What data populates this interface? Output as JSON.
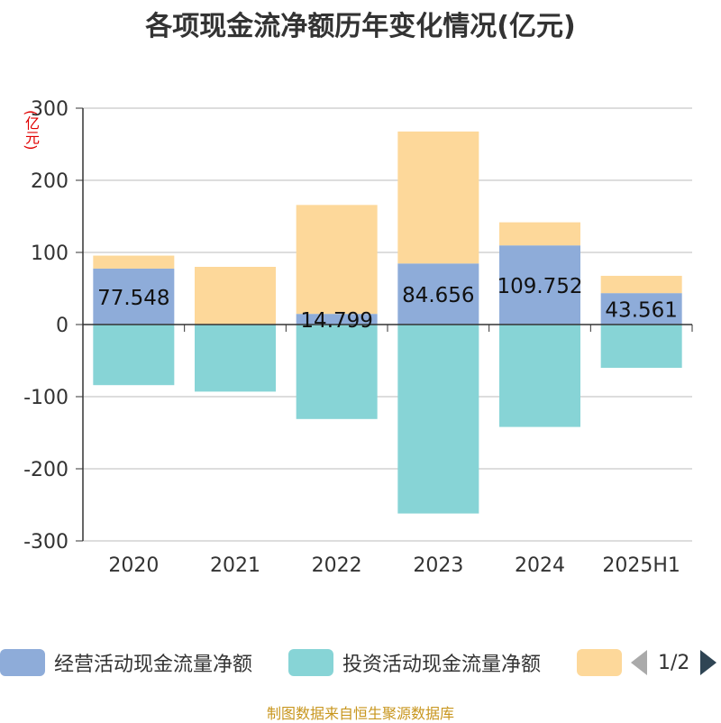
{
  "title": "各项现金流净额历年变化情况(亿元)",
  "unit_label": "(亿元)",
  "source_text": "制图数据来自恒生聚源数据库",
  "legend": {
    "items": [
      {
        "label": "经营活动现金流量净额",
        "color": "#8eacd9"
      },
      {
        "label": "投资活动现金流量净额",
        "color": "#87d4d6"
      },
      {
        "label": "",
        "color": "#fdd89a"
      }
    ],
    "page_text": "1/2"
  },
  "chart_data": {
    "type": "bar",
    "stacked": true,
    "categories": [
      "2020",
      "2021",
      "2022",
      "2023",
      "2024",
      "2025H1"
    ],
    "ylim": [
      -300,
      300
    ],
    "yticks": [
      300,
      200,
      100,
      0,
      -100,
      -200,
      -300
    ],
    "grid": true,
    "legend_position": "bottom",
    "series": [
      {
        "name": "经营活动现金流量净额",
        "color": "#8eacd9",
        "values": [
          77.548,
          0.0,
          14.799,
          84.656,
          109.752,
          43.561
        ],
        "labels": [
          "77.548",
          "",
          "14.799",
          "84.656",
          "109.752",
          "43.561"
        ]
      },
      {
        "name": "投资活动现金流量净额",
        "color": "#87d4d6",
        "values": [
          -84,
          -93,
          -131,
          -262,
          -142,
          -60
        ]
      },
      {
        "color": "#fdd89a",
        "values": [
          18,
          80,
          151,
          183,
          32,
          24
        ]
      }
    ]
  }
}
